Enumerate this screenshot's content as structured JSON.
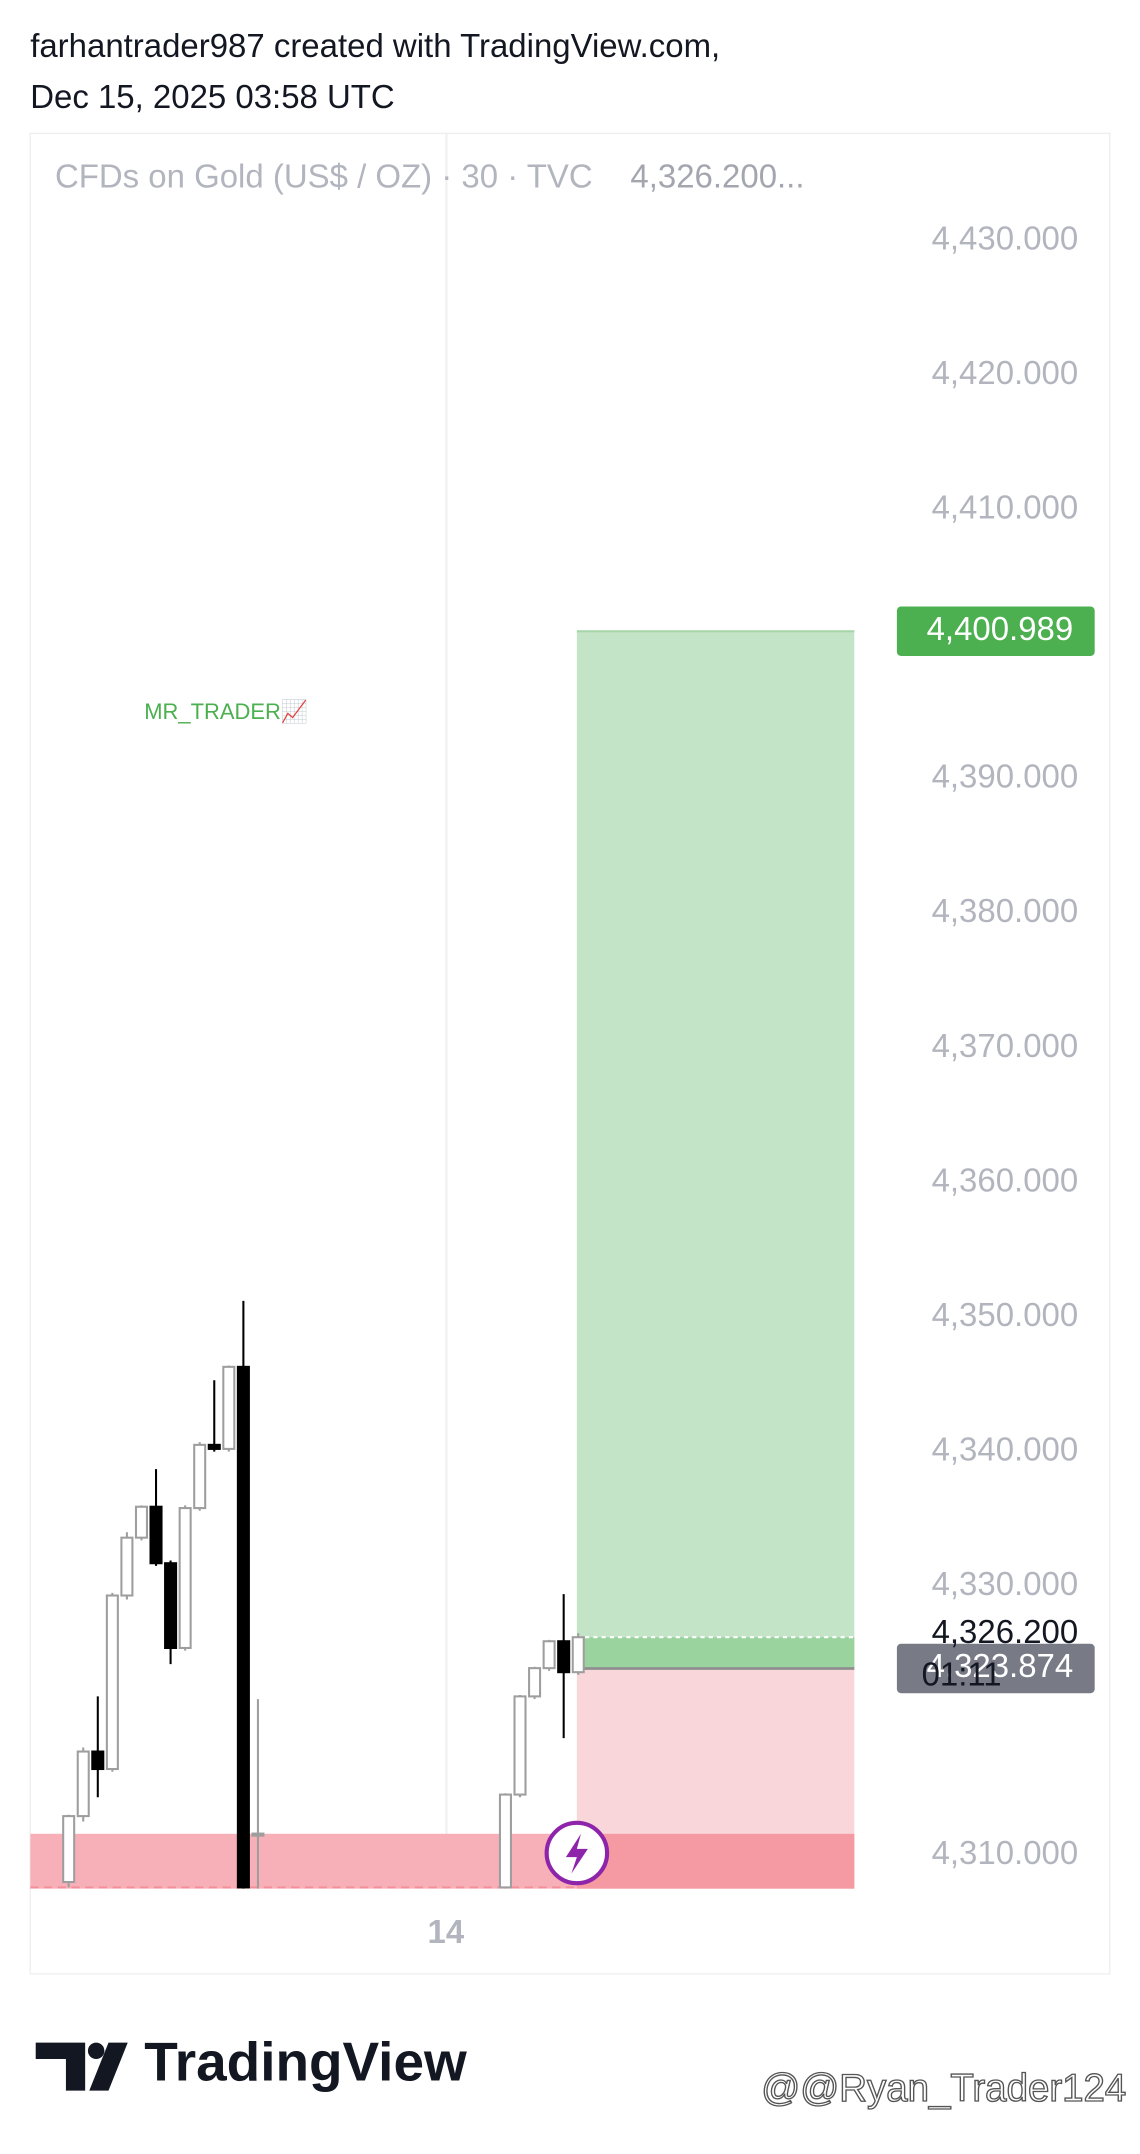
{
  "header": {
    "author_line": "farhantrader987 created with TradingView.com,",
    "timestamp": "Dec 15, 2025 03:58 UTC"
  },
  "chart_data": {
    "type": "candlestick",
    "title": "CFDs on Gold (US$ / OZ) · 30 · TVC",
    "last_value_text": "4,326.200...",
    "annotation": "MR_TRADER📈",
    "categories": [
      null,
      null,
      null,
      null,
      null,
      null,
      null,
      null,
      null,
      null,
      null,
      null,
      null,
      null,
      null,
      null,
      null,
      null,
      null,
      null,
      null,
      null,
      null,
      null,
      null,
      null,
      "14",
      null,
      null,
      null,
      null,
      null,
      null,
      null,
      null,
      null
    ],
    "open": [
      4308.0,
      4312.9,
      4317.7,
      4316.4,
      4329.3,
      4333.6,
      4335.9,
      4331.7,
      4325.4,
      4335.8,
      4340.5,
      4340.2,
      4346.3,
      4311.6,
      null,
      null,
      null,
      null,
      null,
      null,
      null,
      null,
      null,
      null,
      null,
      null,
      null,
      null,
      null,
      null,
      4307.6,
      4314.5,
      4321.8,
      4323.9,
      4325.9,
      4323.6
    ],
    "high": [
      4313.0,
      4318.0,
      4321.8,
      4329.5,
      4334.0,
      4336.0,
      4338.7,
      4331.9,
      4336.0,
      4340.7,
      4345.3,
      4346.4,
      4351.2,
      4321.6,
      null,
      null,
      null,
      null,
      null,
      null,
      null,
      null,
      null,
      null,
      null,
      null,
      null,
      null,
      null,
      null,
      4314.6,
      4321.9,
      4324.0,
      4326.0,
      4329.4,
      4326.5
    ],
    "low": [
      4307.6,
      4312.5,
      4314.3,
      4316.2,
      4329.0,
      4333.4,
      4331.5,
      4324.2,
      4325.2,
      4335.6,
      4340.0,
      4340.0,
      4307.5,
      4307.5,
      null,
      null,
      null,
      null,
      null,
      null,
      null,
      null,
      null,
      null,
      null,
      null,
      null,
      null,
      null,
      null,
      4307.5,
      4314.3,
      4321.6,
      4323.7,
      4318.7,
      4323.4
    ],
    "close": [
      4312.9,
      4317.7,
      4316.4,
      4329.3,
      4333.6,
      4335.9,
      4331.7,
      4325.4,
      4335.8,
      4340.5,
      4340.2,
      4346.3,
      4307.6,
      4311.6,
      null,
      null,
      null,
      null,
      null,
      null,
      null,
      null,
      null,
      null,
      null,
      null,
      null,
      null,
      null,
      null,
      4314.5,
      4321.8,
      4323.9,
      4325.9,
      4323.6,
      4326.2
    ],
    "up_color": "#9e9e9e",
    "down_color": "#000000",
    "ylim": [
      4307.5,
      4438
    ],
    "yticks": [
      {
        "value": 4310,
        "label": "4,310.000"
      },
      {
        "value": 4330,
        "label": "4,330.000"
      },
      {
        "value": 4340,
        "label": "4,340.000"
      },
      {
        "value": 4350,
        "label": "4,350.000"
      },
      {
        "value": 4360,
        "label": "4,360.000"
      },
      {
        "value": 4370,
        "label": "4,370.000"
      },
      {
        "value": 4380,
        "label": "4,380.000"
      },
      {
        "value": 4390,
        "label": "4,390.000"
      },
      {
        "value": 4410,
        "label": "4,410.000"
      },
      {
        "value": 4420,
        "label": "4,420.000"
      },
      {
        "value": 4430,
        "label": "4,430.000"
      }
    ],
    "grid": false,
    "price_labels": [
      {
        "value": 4400.989,
        "label": "4,400.989",
        "color": "#4caf50"
      },
      {
        "value": 4323.874,
        "label": "4,323.874",
        "color": "#787b86"
      }
    ],
    "last_price": {
      "value": 4326.2,
      "label": "4,326.200",
      "countdown": "01:11"
    }
  },
  "footer": {
    "brand": "TradingView",
    "watermark": "@@Ryan_Trader124"
  }
}
